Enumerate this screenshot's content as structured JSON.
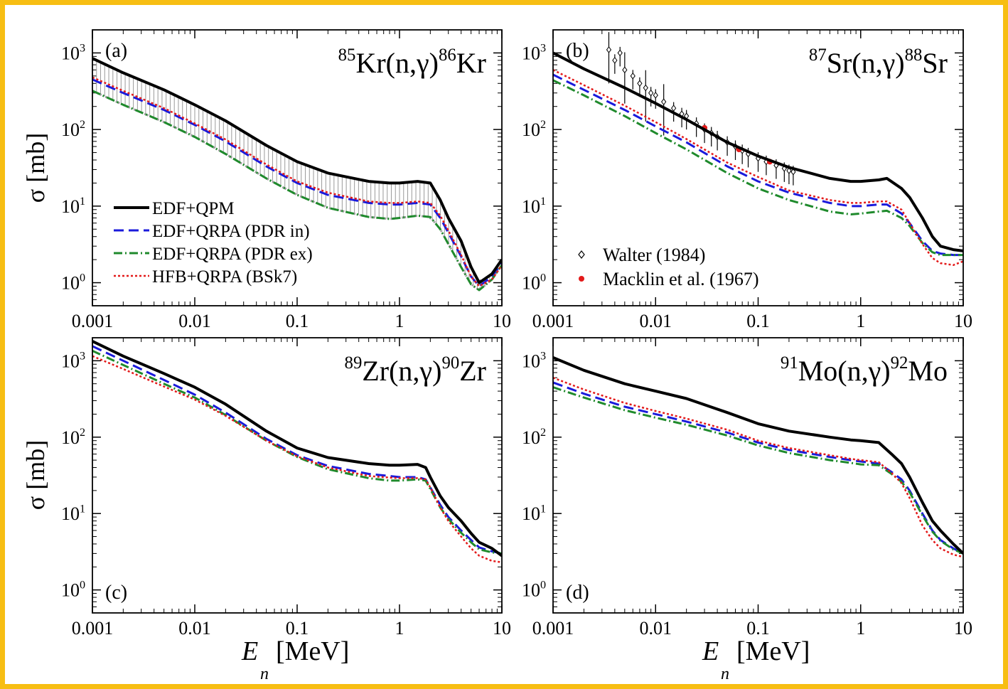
{
  "frame_color": "#f7be13",
  "axes": {
    "ylabel_sigma": "σ",
    "ylabel_unit": "[mb]",
    "xlabel_E": "E",
    "xlabel_sub": "n",
    "xlabel_unit": "[MeV]",
    "x_ticks": [
      "0.001",
      "0.01",
      "0.1",
      "1",
      "10"
    ],
    "y_tick_base": "10",
    "y_tick_exps": [
      "0",
      "1",
      "2",
      "3"
    ],
    "xscale": "log",
    "yscale": "log",
    "xlim": [
      0.001,
      10
    ],
    "ylim": [
      0.5,
      2000
    ]
  },
  "styles": {
    "EDF+QPM": {
      "color": "#000000",
      "dash": "none",
      "width": 4
    },
    "EDF+QRPA (PDR in)": {
      "color": "#1a1adb",
      "dash": "14,7",
      "width": 3
    },
    "EDF+QRPA (PDR ex)": {
      "color": "#1f8a2c",
      "dash": "12,4,2,4",
      "width": 3
    },
    "HFB+QRPA (BSk7)": {
      "color": "#e31a1a",
      "dash": "3,3",
      "width": 2.5
    }
  },
  "legend_a": {
    "position": "lower-left",
    "entries": [
      "EDF+QPM",
      "EDF+QRPA (PDR in)",
      "EDF+QRPA (PDR ex)",
      "HFB+QRPA (BSk7)"
    ]
  },
  "legend_b": {
    "position": "lower-left",
    "entries": [
      {
        "label": "Walter (1984)",
        "color": "#000000",
        "marker": "diamond"
      },
      {
        "label": "Macklin et al. (1967)",
        "color": "#e31a1a",
        "marker": "dot"
      }
    ]
  },
  "chart_data": [
    {
      "type": "line",
      "panel_label": "(a)",
      "reaction": {
        "m1": "85",
        "el1": "Kr",
        "mid": "(n,γ)",
        "m2": "86",
        "el2": "Kr"
      },
      "x": [
        0.001,
        0.002,
        0.005,
        0.01,
        0.02,
        0.05,
        0.1,
        0.2,
        0.5,
        0.8,
        1.0,
        1.5,
        2.0,
        2.5,
        3.0,
        4.0,
        5.0,
        6.0,
        8.0,
        10.0
      ],
      "series": [
        {
          "name": "EDF+QPM",
          "values": [
            850,
            550,
            330,
            210,
            130,
            62,
            38,
            27,
            21,
            20,
            20,
            21,
            20,
            12,
            7,
            3.5,
            1.6,
            1.0,
            1.3,
            2.0
          ]
        },
        {
          "name": "EDF+QRPA (PDR in)",
          "values": [
            450,
            300,
            180,
            115,
            70,
            33,
            20,
            14,
            11,
            10.5,
            10.5,
            11,
            10.5,
            7,
            4.5,
            2.2,
            1.2,
            0.9,
            1.2,
            1.8
          ]
        },
        {
          "name": "EDF+QRPA (PDR ex)",
          "values": [
            320,
            210,
            125,
            80,
            48,
            23,
            14,
            9.5,
            7.2,
            6.8,
            7,
            7.5,
            7.2,
            5,
            3.2,
            1.6,
            0.95,
            0.8,
            1.1,
            1.7
          ]
        },
        {
          "name": "HFB+QRPA (BSk7)",
          "values": [
            480,
            320,
            190,
            120,
            74,
            35,
            21,
            15,
            11.5,
            11,
            11,
            11.5,
            11,
            7.5,
            4.8,
            2.3,
            1.2,
            0.9,
            1.1,
            1.7
          ]
        }
      ]
    },
    {
      "type": "line",
      "panel_label": "(b)",
      "reaction": {
        "m1": "87",
        "el1": "Sr",
        "mid": "(n,γ)",
        "m2": "88",
        "el2": "Sr"
      },
      "x": [
        0.001,
        0.002,
        0.005,
        0.01,
        0.02,
        0.05,
        0.1,
        0.2,
        0.5,
        0.8,
        1.0,
        1.5,
        1.8,
        2.5,
        3.0,
        4.0,
        5.0,
        6.0,
        8.0,
        10.0
      ],
      "series": [
        {
          "name": "EDF+QPM",
          "values": [
            1000,
            620,
            350,
            220,
            135,
            68,
            45,
            32,
            23,
            21,
            21,
            22,
            23,
            17,
            13,
            7,
            4,
            3,
            2.7,
            2.6
          ]
        },
        {
          "name": "EDF+QRPA (PDR in)",
          "values": [
            520,
            330,
            180,
            110,
            68,
            33,
            21,
            15,
            11,
            10,
            10,
            10.5,
            10.5,
            8,
            6,
            3.5,
            2.6,
            2.4,
            2.3,
            2.3
          ]
        },
        {
          "name": "EDF+QRPA (PDR ex)",
          "values": [
            440,
            280,
            150,
            90,
            55,
            27,
            17,
            12,
            8.5,
            7.8,
            8,
            8.5,
            8.7,
            7,
            5.5,
            3.3,
            2.5,
            2.3,
            2.3,
            2.3
          ]
        },
        {
          "name": "HFB+QRPA (BSk7)",
          "values": [
            600,
            380,
            205,
            125,
            75,
            37,
            24,
            16,
            12,
            11,
            11,
            11.5,
            11.5,
            9,
            6,
            3.2,
            2.1,
            1.8,
            1.7,
            1.9
          ]
        }
      ],
      "experiments": [
        {
          "name": "Walter (1984)",
          "x": [
            0.0035,
            0.004,
            0.0045,
            0.005,
            0.006,
            0.007,
            0.008,
            0.009,
            0.01,
            0.012,
            0.015,
            0.018,
            0.02,
            0.025,
            0.03,
            0.035,
            0.04,
            0.05,
            0.06,
            0.07,
            0.08,
            0.1,
            0.12,
            0.15,
            0.18,
            0.2,
            0.22
          ],
          "values": [
            1100,
            800,
            1000,
            600,
            500,
            400,
            350,
            300,
            280,
            230,
            190,
            160,
            150,
            120,
            100,
            90,
            80,
            68,
            60,
            53,
            48,
            42,
            38,
            34,
            31,
            29,
            28
          ]
        },
        {
          "name": "Macklin et al. (1967)",
          "x": [
            0.03,
            0.065,
            0.13
          ],
          "values": [
            105,
            55,
            38
          ]
        }
      ]
    },
    {
      "type": "line",
      "panel_label": "(c)",
      "reaction": {
        "m1": "89",
        "el1": "Zr",
        "mid": "(n,γ)",
        "m2": "90",
        "el2": "Zr"
      },
      "x": [
        0.001,
        0.002,
        0.005,
        0.01,
        0.02,
        0.05,
        0.1,
        0.2,
        0.5,
        0.8,
        1.0,
        1.5,
        1.8,
        2.0,
        2.5,
        3.0,
        4.0,
        5.0,
        6.0,
        8.0,
        10.0
      ],
      "series": [
        {
          "name": "EDF+QPM",
          "values": [
            1800,
            1150,
            680,
            450,
            270,
            120,
            72,
            54,
            45,
            43,
            43,
            44,
            40,
            30,
            17,
            12,
            8,
            5.5,
            4.2,
            3.5,
            2.8
          ]
        },
        {
          "name": "EDF+QRPA (PDR in)",
          "values": [
            1550,
            1000,
            560,
            360,
            210,
            95,
            58,
            42,
            33,
            31,
            30,
            30,
            28,
            22,
            13,
            9,
            6,
            4.5,
            3.6,
            3.2,
            3.0
          ]
        },
        {
          "name": "EDF+QRPA (PDR ex)",
          "values": [
            1350,
            880,
            500,
            330,
            195,
            90,
            55,
            38,
            29,
            27,
            27,
            28,
            27,
            21,
            12,
            8.5,
            5.6,
            4.2,
            3.4,
            3.1,
            3.0
          ]
        },
        {
          "name": "HFB+QRPA (BSk7)",
          "values": [
            1150,
            780,
            460,
            310,
            190,
            90,
            56,
            40,
            31,
            29.5,
            29,
            29,
            28,
            22,
            12,
            8,
            5,
            3.5,
            2.8,
            2.4,
            2.3
          ]
        }
      ]
    },
    {
      "type": "line",
      "panel_label": "(d)",
      "reaction": {
        "m1": "91",
        "el1": "Mo",
        "mid": "(n,γ)",
        "m2": "92",
        "el2": "Mo"
      },
      "x": [
        0.001,
        0.002,
        0.005,
        0.01,
        0.02,
        0.05,
        0.1,
        0.2,
        0.5,
        0.8,
        1.0,
        1.5,
        2.0,
        2.5,
        3.0,
        4.0,
        5.0,
        6.0,
        8.0,
        10.0
      ],
      "series": [
        {
          "name": "EDF+QPM",
          "values": [
            1100,
            750,
            500,
            400,
            320,
            210,
            150,
            120,
            100,
            92,
            90,
            85,
            60,
            45,
            30,
            14,
            8,
            6,
            4,
            3.0
          ]
        },
        {
          "name": "EDF+QRPA (PDR in)",
          "values": [
            520,
            370,
            250,
            200,
            160,
            115,
            85,
            68,
            55,
            50,
            48,
            45,
            35,
            28,
            20,
            10,
            6,
            4.5,
            3.5,
            3.0
          ]
        },
        {
          "name": "EDF+QRPA (PDR ex)",
          "values": [
            450,
            330,
            225,
            180,
            145,
            105,
            78,
            62,
            50,
            46,
            44,
            43,
            33,
            26,
            19,
            9.5,
            5.8,
            4.4,
            3.4,
            3.0
          ]
        },
        {
          "name": "HFB+QRPA (BSk7)",
          "values": [
            600,
            420,
            280,
            220,
            175,
            125,
            90,
            72,
            58,
            52,
            50,
            47,
            34,
            25,
            16,
            7,
            4.5,
            3.5,
            2.9,
            2.7
          ]
        }
      ]
    }
  ]
}
